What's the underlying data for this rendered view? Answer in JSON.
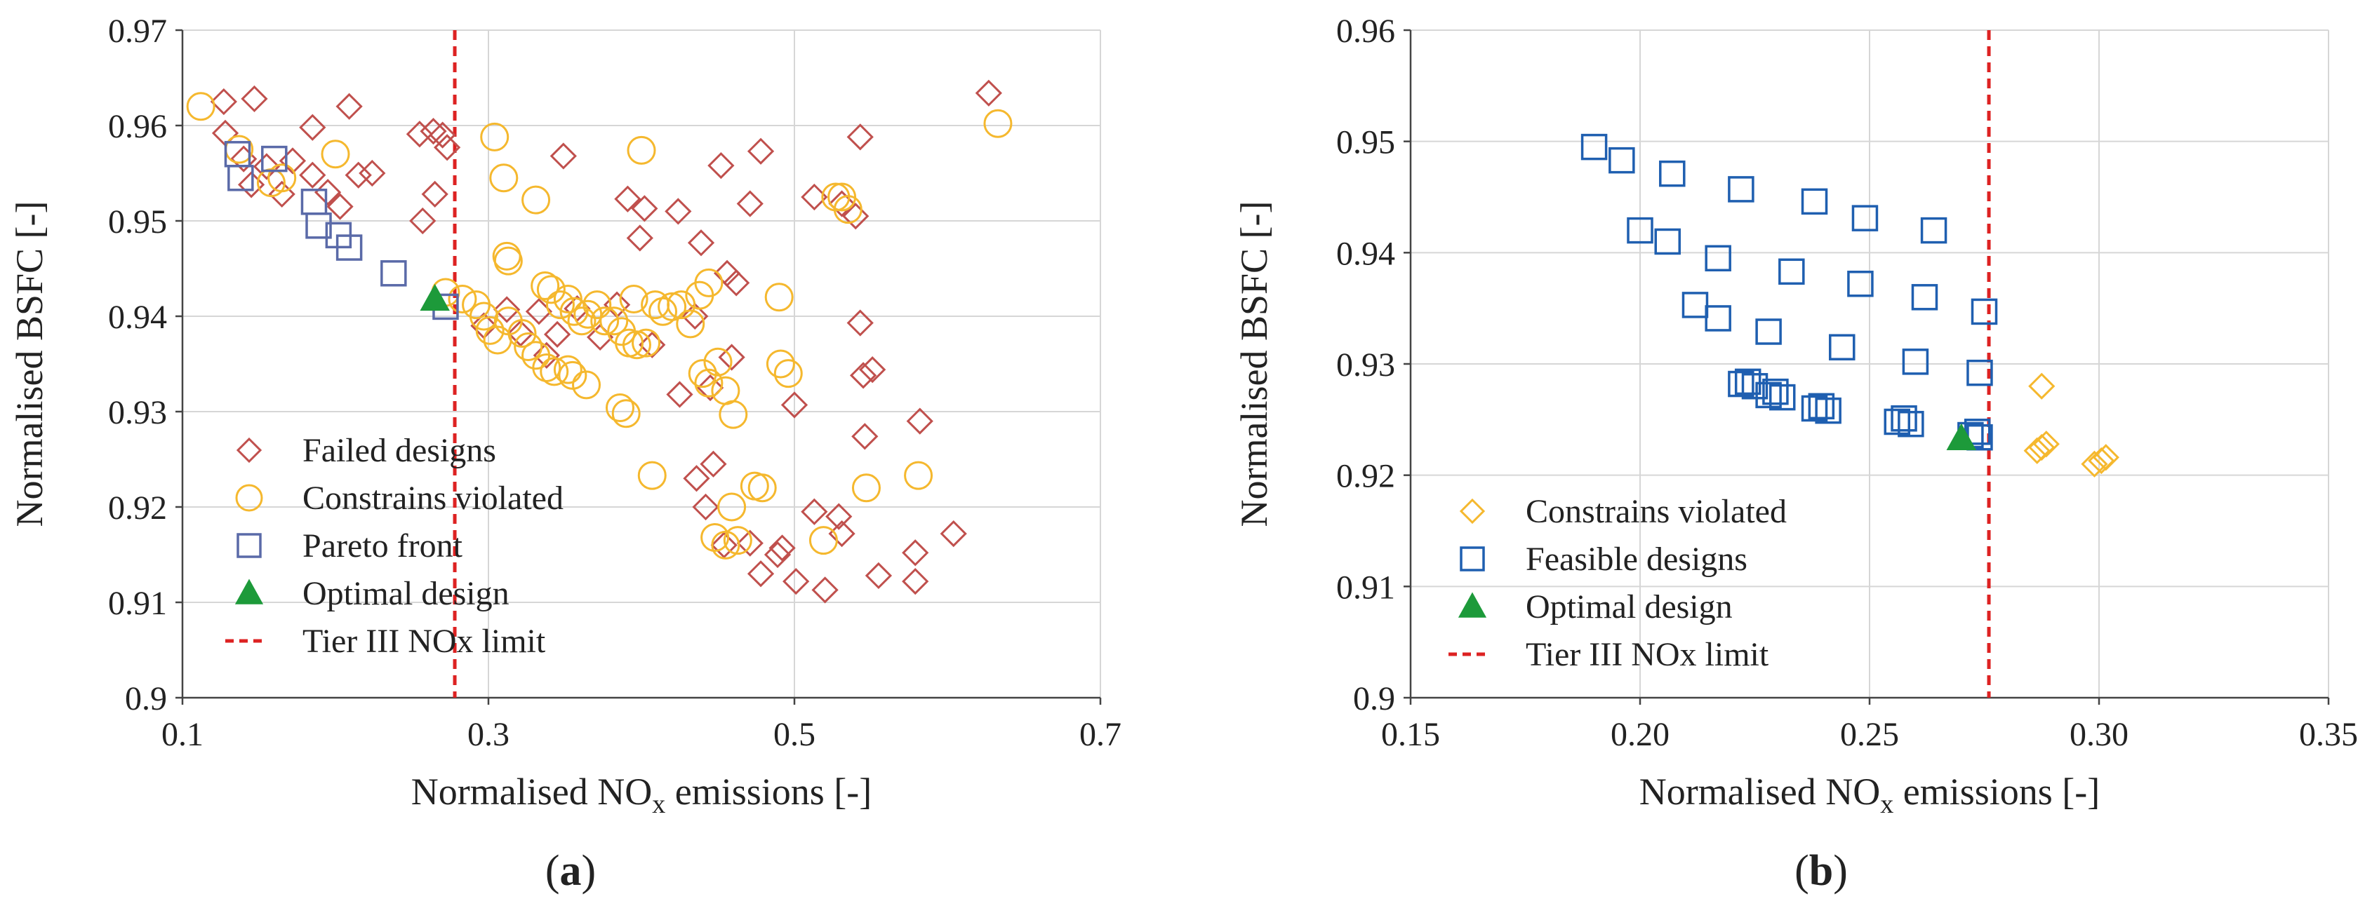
{
  "colors": {
    "failed": "#c0504d",
    "constrains": "#f5b82e",
    "pareto": "#5a6aa8",
    "feasible": "#1f5fb0",
    "optimal": "#1d9a3a",
    "limit": "#dd2222",
    "grid": "#d6d6d6",
    "axis": "#444444"
  },
  "chart_data": [
    {
      "type": "scatter",
      "panel_label_prefix": "(",
      "panel_label_letter": "a",
      "panel_label_suffix": ")",
      "ylabel": "Normalised BSFC [-]",
      "xlabel_prefix": "Normalised NO",
      "xlabel_sub": "x",
      "xlabel_suffix": " emissions [-]",
      "xlim": [
        0.1,
        0.7
      ],
      "ylim": [
        0.9,
        0.97
      ],
      "xticks": [
        0.1,
        0.3,
        0.5,
        0.7
      ],
      "xtick_labels": [
        "0.1",
        "0.3",
        "0.5",
        "0.7"
      ],
      "yticks": [
        0.9,
        0.91,
        0.92,
        0.93,
        0.94,
        0.95,
        0.96,
        0.97
      ],
      "ytick_labels": [
        "0.9",
        "0.91",
        "0.92",
        "0.93",
        "0.94",
        "0.95",
        "0.96",
        "0.97"
      ],
      "grid": true,
      "limit_x": 0.278,
      "legend_position": "bottom-left",
      "series": [
        {
          "name": "Failed designs",
          "marker": "diamond",
          "color_key": "failed",
          "filled": false,
          "points": [
            [
              0.127,
              0.9625
            ],
            [
              0.147,
              0.9628
            ],
            [
              0.128,
              0.9592
            ],
            [
              0.185,
              0.9598
            ],
            [
              0.209,
              0.962
            ],
            [
              0.14,
              0.9565
            ],
            [
              0.155,
              0.9557
            ],
            [
              0.172,
              0.9563
            ],
            [
              0.185,
              0.9548
            ],
            [
              0.215,
              0.9548
            ],
            [
              0.224,
              0.955
            ],
            [
              0.145,
              0.9538
            ],
            [
              0.165,
              0.9528
            ],
            [
              0.195,
              0.953
            ],
            [
              0.255,
              0.9591
            ],
            [
              0.264,
              0.9594
            ],
            [
              0.27,
              0.959
            ],
            [
              0.273,
              0.9577
            ],
            [
              0.203,
              0.9515
            ],
            [
              0.265,
              0.9528
            ],
            [
              0.257,
              0.95
            ],
            [
              0.349,
              0.9568
            ],
            [
              0.452,
              0.9558
            ],
            [
              0.478,
              0.9573
            ],
            [
              0.543,
              0.9588
            ],
            [
              0.627,
              0.9634
            ],
            [
              0.391,
              0.9523
            ],
            [
              0.402,
              0.9513
            ],
            [
              0.424,
              0.951
            ],
            [
              0.471,
              0.9518
            ],
            [
              0.513,
              0.9525
            ],
            [
              0.531,
              0.9518
            ],
            [
              0.54,
              0.9505
            ],
            [
              0.399,
              0.9482
            ],
            [
              0.439,
              0.9477
            ],
            [
              0.456,
              0.9445
            ],
            [
              0.462,
              0.9435
            ],
            [
              0.312,
              0.9407
            ],
            [
              0.333,
              0.9405
            ],
            [
              0.358,
              0.9408
            ],
            [
              0.384,
              0.9412
            ],
            [
              0.297,
              0.939
            ],
            [
              0.321,
              0.9382
            ],
            [
              0.345,
              0.9381
            ],
            [
              0.373,
              0.9378
            ],
            [
              0.407,
              0.937
            ],
            [
              0.338,
              0.9359
            ],
            [
              0.435,
              0.94
            ],
            [
              0.543,
              0.9393
            ],
            [
              0.459,
              0.9357
            ],
            [
              0.5,
              0.9307
            ],
            [
              0.425,
              0.9318
            ],
            [
              0.445,
              0.9325
            ],
            [
              0.545,
              0.9338
            ],
            [
              0.551,
              0.9344
            ],
            [
              0.582,
              0.929
            ],
            [
              0.546,
              0.9274
            ],
            [
              0.436,
              0.923
            ],
            [
              0.447,
              0.9245
            ],
            [
              0.442,
              0.92
            ],
            [
              0.513,
              0.9195
            ],
            [
              0.529,
              0.919
            ],
            [
              0.531,
              0.9172
            ],
            [
              0.604,
              0.9172
            ],
            [
              0.454,
              0.916
            ],
            [
              0.471,
              0.9162
            ],
            [
              0.489,
              0.915
            ],
            [
              0.492,
              0.9157
            ],
            [
              0.579,
              0.9152
            ],
            [
              0.478,
              0.913
            ],
            [
              0.501,
              0.9122
            ],
            [
              0.555,
              0.9128
            ],
            [
              0.579,
              0.9122
            ],
            [
              0.52,
              0.9113
            ]
          ]
        },
        {
          "name": "Constrains violated",
          "marker": "circle",
          "color_key": "constrains",
          "filled": false,
          "points": [
            [
              0.112,
              0.962
            ],
            [
              0.137,
              0.9575
            ],
            [
              0.2,
              0.957
            ],
            [
              0.158,
              0.954
            ],
            [
              0.165,
              0.9545
            ],
            [
              0.304,
              0.9588
            ],
            [
              0.31,
              0.9545
            ],
            [
              0.331,
              0.9522
            ],
            [
              0.4,
              0.9574
            ],
            [
              0.527,
              0.9525
            ],
            [
              0.531,
              0.9525
            ],
            [
              0.535,
              0.9512
            ],
            [
              0.633,
              0.9602
            ],
            [
              0.272,
              0.9425
            ],
            [
              0.283,
              0.9418
            ],
            [
              0.292,
              0.9412
            ],
            [
              0.297,
              0.94
            ],
            [
              0.301,
              0.9385
            ],
            [
              0.306,
              0.9375
            ],
            [
              0.313,
              0.9395
            ],
            [
              0.312,
              0.9463
            ],
            [
              0.313,
              0.9458
            ],
            [
              0.322,
              0.9382
            ],
            [
              0.326,
              0.9368
            ],
            [
              0.331,
              0.9359
            ],
            [
              0.337,
              0.9432
            ],
            [
              0.341,
              0.9428
            ],
            [
              0.347,
              0.9412
            ],
            [
              0.352,
              0.9418
            ],
            [
              0.356,
              0.9405
            ],
            [
              0.361,
              0.9395
            ],
            [
              0.365,
              0.9402
            ],
            [
              0.371,
              0.9412
            ],
            [
              0.376,
              0.9395
            ],
            [
              0.382,
              0.9395
            ],
            [
              0.338,
              0.9346
            ],
            [
              0.343,
              0.9342
            ],
            [
              0.352,
              0.9344
            ],
            [
              0.355,
              0.9338
            ],
            [
              0.364,
              0.9328
            ],
            [
              0.387,
              0.9384
            ],
            [
              0.392,
              0.9372
            ],
            [
              0.397,
              0.937
            ],
            [
              0.403,
              0.9372
            ],
            [
              0.409,
              0.9412
            ],
            [
              0.414,
              0.9405
            ],
            [
              0.42,
              0.941
            ],
            [
              0.426,
              0.9412
            ],
            [
              0.432,
              0.9392
            ],
            [
              0.438,
              0.9422
            ],
            [
              0.444,
              0.9435
            ],
            [
              0.395,
              0.9418
            ],
            [
              0.386,
              0.9304
            ],
            [
              0.39,
              0.9298
            ],
            [
              0.44,
              0.934
            ],
            [
              0.444,
              0.933
            ],
            [
              0.45,
              0.9352
            ],
            [
              0.455,
              0.9322
            ],
            [
              0.46,
              0.9297
            ],
            [
              0.491,
              0.935
            ],
            [
              0.496,
              0.934
            ],
            [
              0.49,
              0.942
            ],
            [
              0.407,
              0.9233
            ],
            [
              0.448,
              0.9168
            ],
            [
              0.455,
              0.916
            ],
            [
              0.463,
              0.9165
            ],
            [
              0.474,
              0.9222
            ],
            [
              0.479,
              0.922
            ],
            [
              0.459,
              0.92
            ],
            [
              0.519,
              0.9165
            ],
            [
              0.547,
              0.922
            ],
            [
              0.581,
              0.9233
            ]
          ]
        },
        {
          "name": "Pareto front",
          "marker": "square",
          "color_key": "pareto",
          "filled": false,
          "points": [
            [
              0.136,
              0.957
            ],
            [
              0.138,
              0.9545
            ],
            [
              0.16,
              0.9565
            ],
            [
              0.186,
              0.952
            ],
            [
              0.189,
              0.9495
            ],
            [
              0.202,
              0.9485
            ],
            [
              0.209,
              0.9472
            ],
            [
              0.238,
              0.9445
            ],
            [
              0.272,
              0.941
            ]
          ]
        },
        {
          "name": "Optimal design",
          "marker": "triangle",
          "color_key": "optimal",
          "filled": true,
          "points": [
            [
              0.265,
              0.9418
            ]
          ]
        },
        {
          "name": "Tier III NOx limit",
          "marker": "dashed-line",
          "color_key": "limit",
          "filled": false,
          "points": []
        }
      ]
    },
    {
      "type": "scatter",
      "panel_label_prefix": "(",
      "panel_label_letter": "b",
      "panel_label_suffix": ")",
      "ylabel": "Normalised BSFC [-]",
      "xlabel_prefix": "Normalised NO",
      "xlabel_sub": "x",
      "xlabel_suffix": " emissions [-]",
      "xlim": [
        0.15,
        0.35
      ],
      "ylim": [
        0.9,
        0.96
      ],
      "xticks": [
        0.15,
        0.2,
        0.25,
        0.3,
        0.35
      ],
      "xtick_labels": [
        "0.15",
        "0.20",
        "0.25",
        "0.30",
        "0.35"
      ],
      "yticks": [
        0.9,
        0.91,
        0.92,
        0.93,
        0.94,
        0.95,
        0.96
      ],
      "ytick_labels": [
        "0.9",
        "0.91",
        "0.92",
        "0.93",
        "0.94",
        "0.95",
        "0.96"
      ],
      "grid": true,
      "limit_x": 0.276,
      "legend_position": "bottom-left",
      "series": [
        {
          "name": "Constrains violated",
          "marker": "diamond",
          "color_key": "constrains",
          "filled": false,
          "points": [
            [
              0.2875,
              0.928
            ],
            [
              0.2865,
              0.9222
            ],
            [
              0.2875,
              0.9225
            ],
            [
              0.2885,
              0.9228
            ],
            [
              0.299,
              0.921
            ],
            [
              0.3005,
              0.9213
            ],
            [
              0.3015,
              0.9216
            ]
          ]
        },
        {
          "name": "Feasible designs",
          "marker": "square",
          "color_key": "feasible",
          "filled": false,
          "points": [
            [
              0.19,
              0.9495
            ],
            [
              0.196,
              0.9483
            ],
            [
              0.207,
              0.9471
            ],
            [
              0.222,
              0.9457
            ],
            [
              0.238,
              0.9446
            ],
            [
              0.249,
              0.9431
            ],
            [
              0.264,
              0.942
            ],
            [
              0.2,
              0.942
            ],
            [
              0.206,
              0.941
            ],
            [
              0.217,
              0.9395
            ],
            [
              0.233,
              0.9383
            ],
            [
              0.248,
              0.9372
            ],
            [
              0.262,
              0.936
            ],
            [
              0.212,
              0.9353
            ],
            [
              0.217,
              0.9341
            ],
            [
              0.228,
              0.9329
            ],
            [
              0.244,
              0.9315
            ],
            [
              0.26,
              0.9302
            ],
            [
              0.274,
              0.9292
            ],
            [
              0.275,
              0.9347
            ],
            [
              0.222,
              0.9282
            ],
            [
              0.2235,
              0.9284
            ],
            [
              0.225,
              0.928
            ],
            [
              0.228,
              0.9272
            ],
            [
              0.2295,
              0.9275
            ],
            [
              0.231,
              0.927
            ],
            [
              0.238,
              0.926
            ],
            [
              0.2395,
              0.9262
            ],
            [
              0.241,
              0.9258
            ],
            [
              0.256,
              0.9248
            ],
            [
              0.2575,
              0.9251
            ],
            [
              0.259,
              0.9246
            ],
            [
              0.272,
              0.9236
            ],
            [
              0.2735,
              0.9239
            ],
            [
              0.274,
              0.9234
            ]
          ]
        },
        {
          "name": "Optimal design",
          "marker": "triangle",
          "color_key": "optimal",
          "filled": true,
          "points": [
            [
              0.27,
              0.9233
            ]
          ]
        },
        {
          "name": "Tier III NOx limit",
          "marker": "dashed-line",
          "color_key": "limit",
          "filled": false,
          "points": []
        }
      ]
    }
  ]
}
